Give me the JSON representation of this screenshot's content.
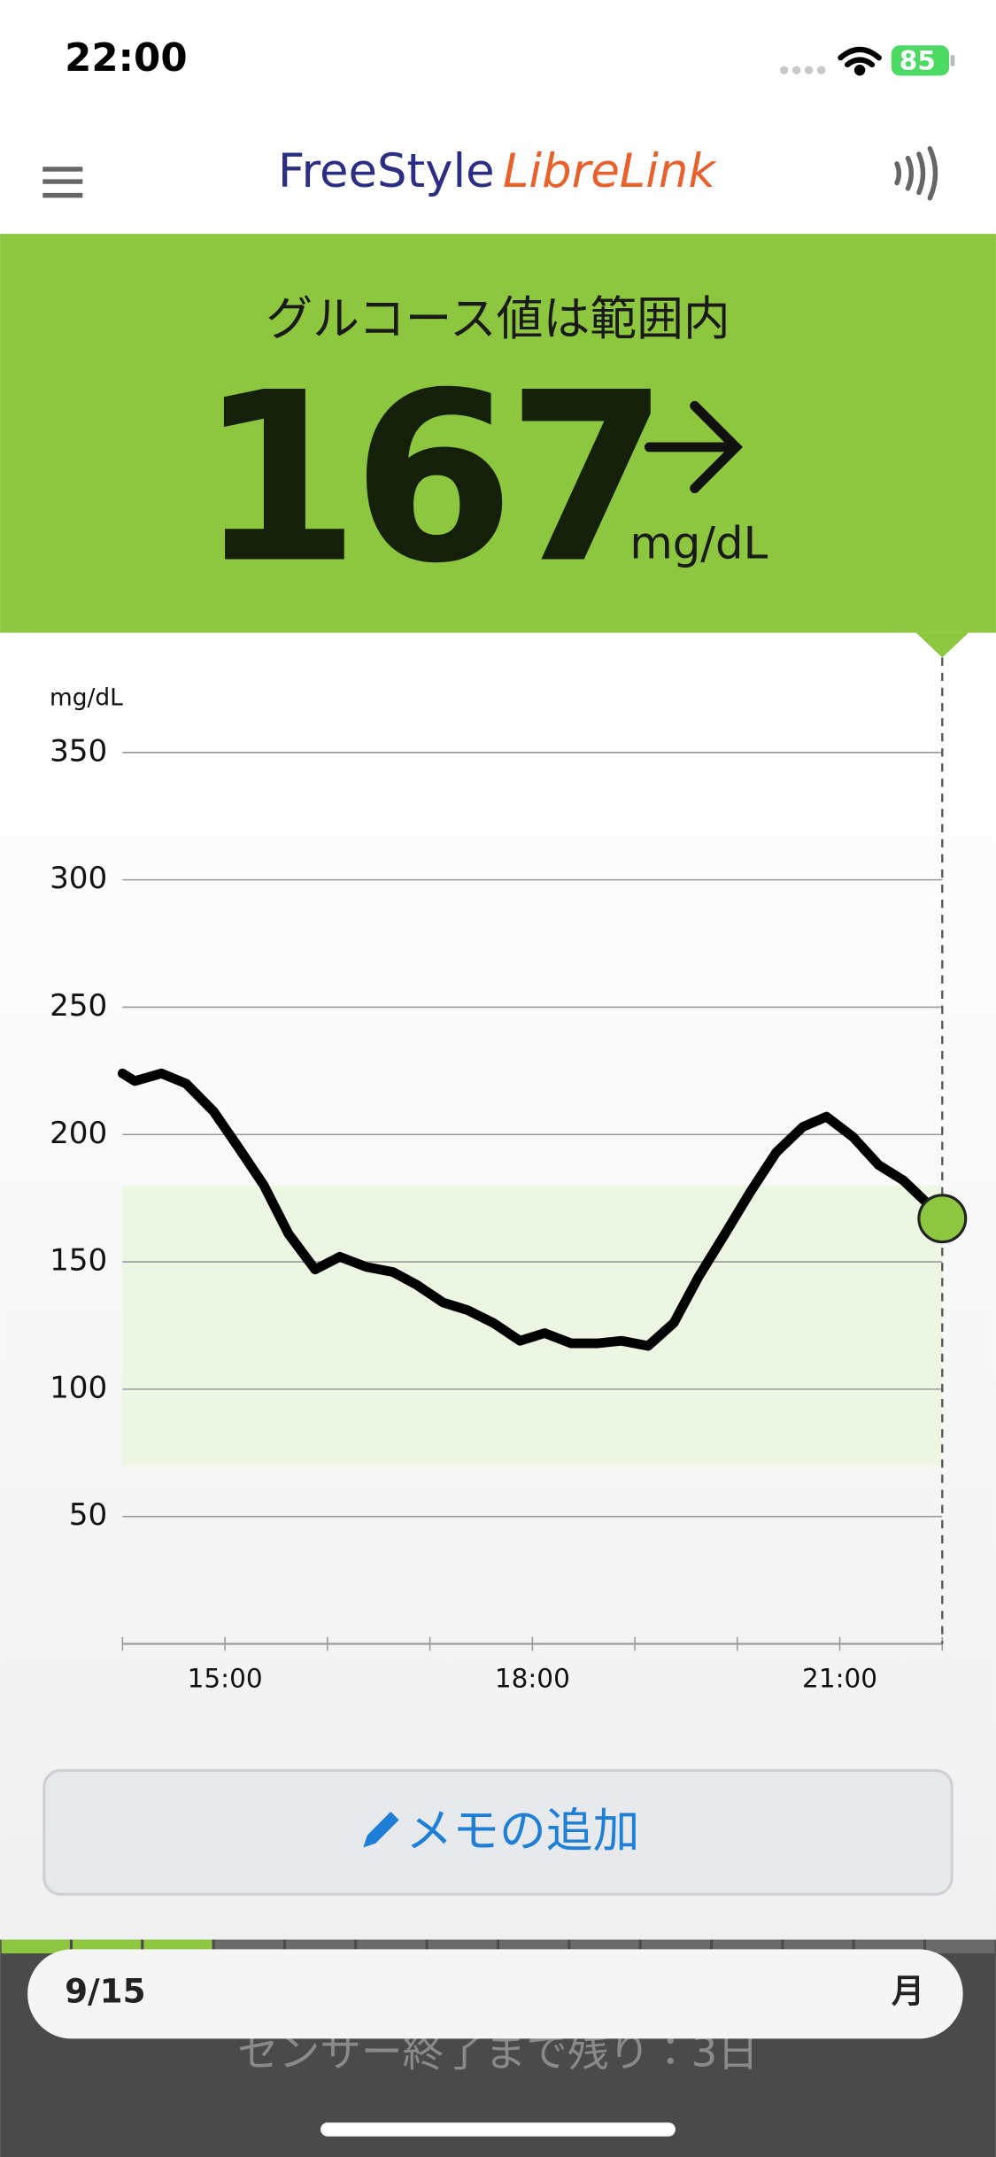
{
  "status_bar": {
    "time": "22:00",
    "battery": 85
  },
  "header": {
    "logo_brand": "FreeStyle",
    "logo_product": "LibreLink"
  },
  "banner": {
    "status": "グルコース値は範囲内",
    "value": 167,
    "unit": "mg/dL"
  },
  "chart_data": {
    "type": "line",
    "y_label": "mg/dL",
    "xlim": [
      14,
      22
    ],
    "ylim": [
      0,
      350
    ],
    "xticks": [
      {
        "value": 15,
        "label": "15:00"
      },
      {
        "value": 18,
        "label": "18:00"
      },
      {
        "value": 21,
        "label": "21:00"
      }
    ],
    "xminor_ticks": [
      14,
      16,
      17,
      19,
      20,
      22
    ],
    "yticks": [
      50,
      100,
      150,
      200,
      250,
      300,
      350
    ],
    "grid": true,
    "target_range": [
      70,
      180
    ],
    "target_color": "#edf5e3",
    "series": [
      {
        "color": "#000000",
        "x": [
          14.0,
          14.12,
          14.38,
          14.62,
          14.89,
          15.13,
          15.38,
          15.62,
          15.88,
          16.12,
          16.38,
          16.64,
          16.87,
          17.13,
          17.37,
          17.62,
          17.88,
          18.12,
          18.38,
          18.63,
          18.87,
          19.13,
          19.38,
          19.62,
          19.88,
          20.12,
          20.38,
          20.64,
          20.87,
          21.13,
          21.38,
          21.62,
          21.88,
          22.0
        ],
        "values": [
          224,
          221,
          224,
          220,
          209,
          195,
          180,
          161,
          147,
          152,
          148,
          146,
          141,
          134,
          131,
          126,
          119,
          122,
          118,
          118,
          119,
          117,
          126,
          144,
          161,
          177,
          193,
          203,
          207,
          199,
          188,
          182,
          172,
          167
        ]
      }
    ],
    "current_color": "#8dc63f"
  },
  "memo_button": {
    "label": "メモの追加"
  },
  "footer": {
    "date": "9/15",
    "weekday": "月",
    "sensor_message": "センサー終了まで残り：3日"
  }
}
